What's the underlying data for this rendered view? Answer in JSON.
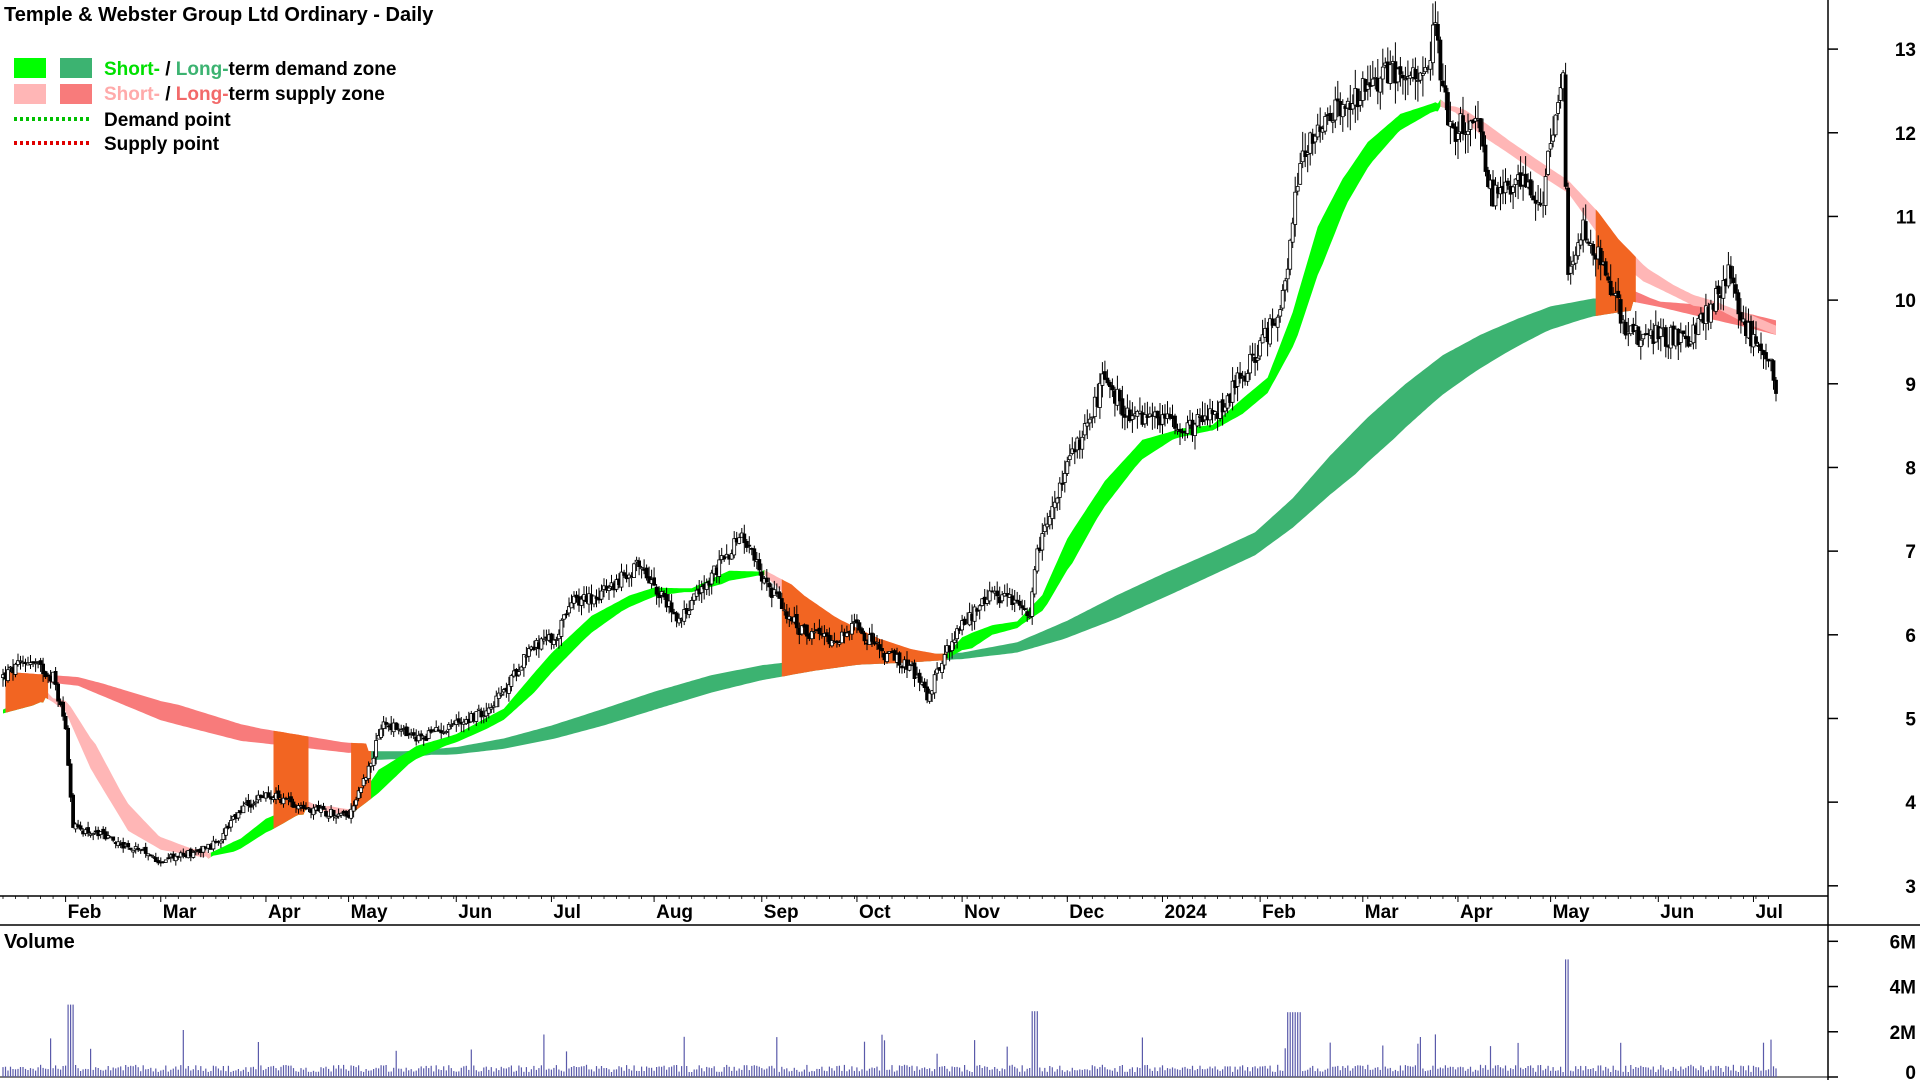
{
  "title": "Temple & Webster Group Ltd Ordinary - Daily",
  "legend": {
    "demand_zone": {
      "short": "Short-",
      "sep": " / ",
      "long": "Long-",
      "suffix": "term demand zone"
    },
    "supply_zone": {
      "short": "Short-",
      "sep": " / ",
      "long": "Long-",
      "suffix": "term supply zone"
    },
    "demand_point": "Demand point",
    "supply_point": "Supply point"
  },
  "colors": {
    "short_demand": "#00ff00",
    "long_demand": "#3cb371",
    "short_supply": "#ffb6b6",
    "long_supply": "#f87b7b",
    "overlap": "#f26522",
    "demand_point": "#00c000",
    "supply_point": "#e00000",
    "volume": "#5a5aaa",
    "volume_label": "#4b0082"
  },
  "volume_label": "Volume",
  "chart_data": {
    "type": "candlestick",
    "price_axis": {
      "ticks": [
        "3",
        "4",
        "5",
        "6",
        "7",
        "8",
        "9",
        "10",
        "11",
        "12",
        "13"
      ],
      "range": [
        2.95,
        13.3
      ]
    },
    "volume_axis": {
      "ticks": [
        "0",
        "2M",
        "4M",
        "6M"
      ],
      "range": [
        0,
        6500000
      ]
    },
    "months": [
      {
        "label": "Feb",
        "i": 25
      },
      {
        "label": "Mar",
        "i": 63
      },
      {
        "label": "Apr",
        "i": 105
      },
      {
        "label": "May",
        "i": 138
      },
      {
        "label": "Jun",
        "i": 181
      },
      {
        "label": "Jul",
        "i": 219
      },
      {
        "label": "Aug",
        "i": 260
      },
      {
        "label": "Sep",
        "i": 303
      },
      {
        "label": "Oct",
        "i": 341
      },
      {
        "label": "Nov",
        "i": 383
      },
      {
        "label": "Dec",
        "i": 425
      },
      {
        "label": "2024",
        "i": 463
      },
      {
        "label": "Feb",
        "i": 502
      },
      {
        "label": "Mar",
        "i": 543
      },
      {
        "label": "Apr",
        "i": 581
      },
      {
        "label": "May",
        "i": 618
      },
      {
        "label": "Jun",
        "i": 661
      },
      {
        "label": "Jul",
        "i": 699
      }
    ],
    "price_path": [
      [
        0,
        5.5
      ],
      [
        10,
        5.7
      ],
      [
        20,
        5.5
      ],
      [
        25,
        4.9
      ],
      [
        28,
        3.7
      ],
      [
        40,
        3.6
      ],
      [
        55,
        3.4
      ],
      [
        63,
        3.3
      ],
      [
        75,
        3.4
      ],
      [
        85,
        3.5
      ],
      [
        95,
        3.9
      ],
      [
        105,
        4.1
      ],
      [
        115,
        4.0
      ],
      [
        125,
        3.9
      ],
      [
        138,
        3.85
      ],
      [
        146,
        4.4
      ],
      [
        152,
        4.95
      ],
      [
        165,
        4.75
      ],
      [
        181,
        4.95
      ],
      [
        190,
        5.05
      ],
      [
        200,
        5.3
      ],
      [
        210,
        5.85
      ],
      [
        220,
        5.95
      ],
      [
        228,
        6.4
      ],
      [
        240,
        6.5
      ],
      [
        255,
        6.85
      ],
      [
        262,
        6.5
      ],
      [
        270,
        6.2
      ],
      [
        283,
        6.7
      ],
      [
        295,
        7.2
      ],
      [
        305,
        6.6
      ],
      [
        318,
        6.05
      ],
      [
        333,
        5.95
      ],
      [
        341,
        6.1
      ],
      [
        350,
        5.8
      ],
      [
        363,
        5.6
      ],
      [
        369,
        5.25
      ],
      [
        375,
        5.7
      ],
      [
        383,
        6.1
      ],
      [
        393,
        6.45
      ],
      [
        403,
        6.4
      ],
      [
        410,
        6.15
      ],
      [
        413,
        7.0
      ],
      [
        425,
        8.0
      ],
      [
        433,
        8.5
      ],
      [
        440,
        9.1
      ],
      [
        450,
        8.55
      ],
      [
        463,
        8.6
      ],
      [
        475,
        8.5
      ],
      [
        483,
        8.6
      ],
      [
        495,
        9.1
      ],
      [
        505,
        9.6
      ],
      [
        512,
        10.1
      ],
      [
        518,
        11.7
      ],
      [
        525,
        12.1
      ],
      [
        535,
        12.3
      ],
      [
        543,
        12.5
      ],
      [
        555,
        12.75
      ],
      [
        565,
        12.6
      ],
      [
        572,
        13.2
      ],
      [
        578,
        12.0
      ],
      [
        588,
        12.2
      ],
      [
        595,
        11.2
      ],
      [
        605,
        11.5
      ],
      [
        615,
        11.2
      ],
      [
        620,
        12.3
      ],
      [
        623,
        12.6
      ],
      [
        625,
        10.2
      ],
      [
        631,
        10.85
      ],
      [
        640,
        10.4
      ],
      [
        648,
        9.6
      ],
      [
        655,
        9.55
      ],
      [
        661,
        9.6
      ],
      [
        672,
        9.5
      ],
      [
        681,
        9.85
      ],
      [
        689,
        10.3
      ],
      [
        695,
        9.7
      ],
      [
        705,
        9.3
      ],
      [
        708,
        9.0
      ]
    ],
    "short_ema_path": [
      [
        0,
        5.1
      ],
      [
        15,
        5.3
      ],
      [
        25,
        5.1
      ],
      [
        35,
        4.45
      ],
      [
        50,
        3.7
      ],
      [
        63,
        3.45
      ],
      [
        80,
        3.35
      ],
      [
        95,
        3.55
      ],
      [
        105,
        3.78
      ],
      [
        118,
        3.95
      ],
      [
        138,
        3.85
      ],
      [
        150,
        4.35
      ],
      [
        165,
        4.65
      ],
      [
        181,
        4.8
      ],
      [
        200,
        5.1
      ],
      [
        219,
        5.75
      ],
      [
        235,
        6.2
      ],
      [
        250,
        6.45
      ],
      [
        260,
        6.55
      ],
      [
        275,
        6.55
      ],
      [
        290,
        6.75
      ],
      [
        303,
        6.75
      ],
      [
        320,
        6.3
      ],
      [
        335,
        6.05
      ],
      [
        350,
        5.85
      ],
      [
        363,
        5.75
      ],
      [
        375,
        5.7
      ],
      [
        383,
        5.95
      ],
      [
        395,
        6.1
      ],
      [
        405,
        6.15
      ],
      [
        415,
        6.45
      ],
      [
        425,
        7.1
      ],
      [
        440,
        7.8
      ],
      [
        455,
        8.3
      ],
      [
        470,
        8.45
      ],
      [
        483,
        8.5
      ],
      [
        495,
        8.8
      ],
      [
        505,
        9.05
      ],
      [
        515,
        9.8
      ],
      [
        525,
        10.8
      ],
      [
        535,
        11.4
      ],
      [
        545,
        11.85
      ],
      [
        558,
        12.2
      ],
      [
        572,
        12.35
      ],
      [
        580,
        12.25
      ],
      [
        590,
        12.0
      ],
      [
        600,
        11.8
      ],
      [
        612,
        11.55
      ],
      [
        625,
        11.3
      ],
      [
        635,
        10.9
      ],
      [
        645,
        10.5
      ],
      [
        655,
        10.25
      ],
      [
        665,
        10.1
      ],
      [
        675,
        9.95
      ],
      [
        685,
        9.9
      ],
      [
        695,
        9.75
      ],
      [
        708,
        9.6
      ]
    ],
    "long_ema_path": [
      [
        0,
        5.5
      ],
      [
        30,
        5.4
      ],
      [
        63,
        5.0
      ],
      [
        95,
        4.75
      ],
      [
        138,
        4.6
      ],
      [
        160,
        4.6
      ],
      [
        181,
        4.65
      ],
      [
        200,
        4.75
      ],
      [
        219,
        4.9
      ],
      [
        240,
        5.1
      ],
      [
        260,
        5.3
      ],
      [
        283,
        5.5
      ],
      [
        303,
        5.62
      ],
      [
        325,
        5.7
      ],
      [
        341,
        5.75
      ],
      [
        363,
        5.75
      ],
      [
        383,
        5.78
      ],
      [
        405,
        5.9
      ],
      [
        425,
        6.15
      ],
      [
        445,
        6.45
      ],
      [
        463,
        6.7
      ],
      [
        482,
        6.95
      ],
      [
        500,
        7.2
      ],
      [
        515,
        7.6
      ],
      [
        530,
        8.1
      ],
      [
        545,
        8.55
      ],
      [
        560,
        8.95
      ],
      [
        575,
        9.3
      ],
      [
        590,
        9.55
      ],
      [
        605,
        9.75
      ],
      [
        618,
        9.9
      ],
      [
        635,
        10.0
      ],
      [
        650,
        10.0
      ],
      [
        665,
        9.9
      ],
      [
        680,
        9.8
      ],
      [
        695,
        9.7
      ],
      [
        708,
        9.6
      ]
    ]
  }
}
